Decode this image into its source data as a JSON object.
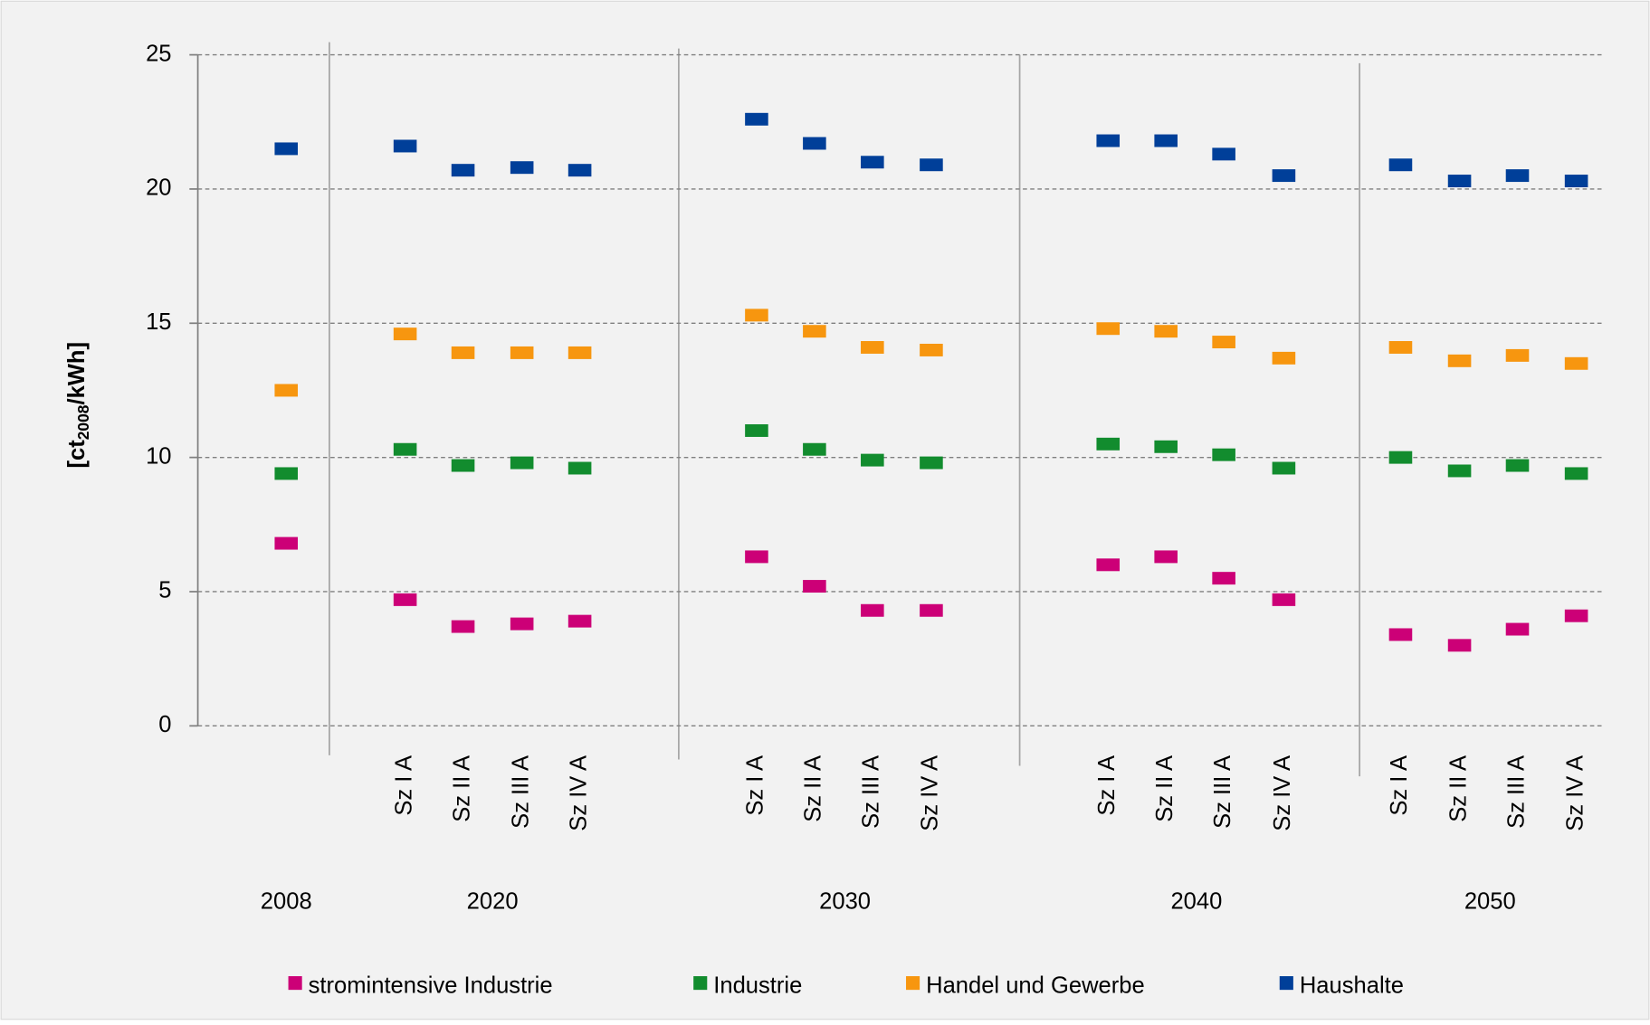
{
  "chart_data": {
    "type": "marker",
    "y_label": [
      "[ct",
      "2008",
      "/kWh]"
    ],
    "categories": [
      null,
      "Sz I A",
      "Sz II A",
      "Sz III A",
      "Sz IV A",
      "Sz I A",
      "Sz II A",
      "Sz III A",
      "Sz IV A",
      "Sz I A",
      "Sz II A",
      "Sz III A",
      "Sz IV A",
      "Sz I A",
      "Sz II A",
      "Sz III A",
      "Sz IV A"
    ],
    "groups": [
      "2008",
      "2020",
      "2030",
      "2040",
      "2050"
    ],
    "ylim": [
      0,
      25
    ],
    "yticks": [
      0,
      5,
      10,
      15,
      20,
      25
    ],
    "grid": true,
    "series": [
      {
        "name": "stromintensive Industrie",
        "color": "#cc0077",
        "values": [
          6.8,
          4.7,
          3.7,
          3.8,
          3.9,
          6.3,
          5.2,
          4.3,
          4.3,
          6.0,
          6.3,
          5.5,
          4.7,
          3.4,
          3.0,
          3.6,
          4.1
        ]
      },
      {
        "name": "Industrie",
        "color": "#128c2e",
        "values": [
          9.4,
          10.3,
          9.7,
          9.8,
          9.6,
          11.0,
          10.3,
          9.9,
          9.8,
          10.5,
          10.4,
          10.1,
          9.6,
          10.0,
          9.5,
          9.7,
          9.4
        ]
      },
      {
        "name": "Handel und Gewerbe",
        "color": "#f7960f",
        "values": [
          12.5,
          14.6,
          13.9,
          13.9,
          13.9,
          15.3,
          14.7,
          14.1,
          14.0,
          14.8,
          14.7,
          14.3,
          13.7,
          14.1,
          13.6,
          13.8,
          13.5
        ]
      },
      {
        "name": "Haushalte",
        "color": "#003f99",
        "values": [
          21.5,
          21.6,
          20.7,
          20.8,
          20.7,
          22.6,
          21.7,
          21.0,
          20.9,
          21.8,
          21.8,
          21.3,
          20.5,
          20.9,
          20.3,
          20.5,
          20.3
        ]
      }
    ]
  }
}
